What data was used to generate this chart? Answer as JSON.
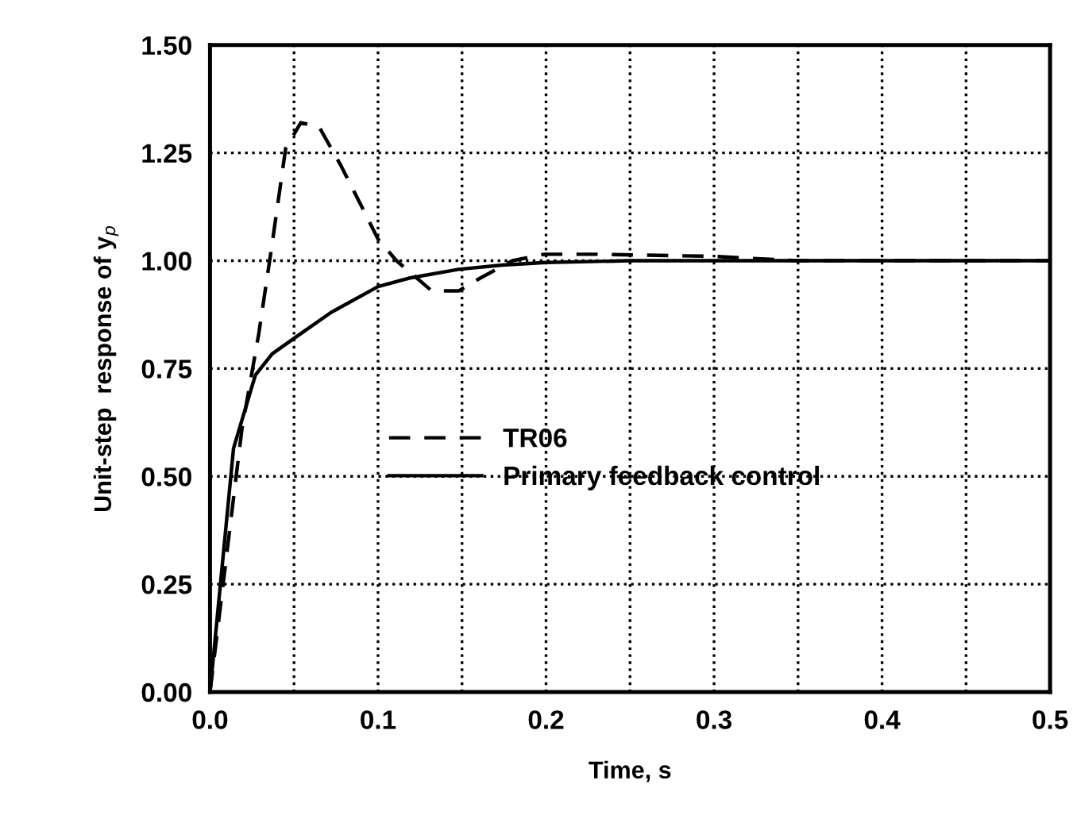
{
  "chart_data": {
    "type": "line",
    "xlabel": "Time, s",
    "ylabel": "Unit-step  response of y$_{p}$",
    "xlim": [
      0,
      0.5
    ],
    "ylim": [
      0,
      1.5
    ],
    "xticks": [
      {
        "value": 0,
        "label": "0.0"
      },
      {
        "value": 0.05,
        "label": null
      },
      {
        "value": 0.1,
        "label": "0.1"
      },
      {
        "value": 0.15,
        "label": null
      },
      {
        "value": 0.2,
        "label": "0.2"
      },
      {
        "value": 0.25,
        "label": null
      },
      {
        "value": 0.3,
        "label": "0.3"
      },
      {
        "value": 0.35,
        "label": null
      },
      {
        "value": 0.4,
        "label": "0.4"
      },
      {
        "value": 0.45,
        "label": null
      },
      {
        "value": 0.5,
        "label": "0.5"
      }
    ],
    "yticks": [
      {
        "value": 0,
        "label": "0.00"
      },
      {
        "value": 0.25,
        "label": "0.25"
      },
      {
        "value": 0.5,
        "label": "0.50"
      },
      {
        "value": 0.75,
        "label": "0.75"
      },
      {
        "value": 1.0,
        "label": "1.00"
      },
      {
        "value": 1.25,
        "label": "1.25"
      },
      {
        "value": 1.5,
        "label": "1.50"
      }
    ],
    "grid": true,
    "legend": "center",
    "series": [
      {
        "name": "TR06",
        "color": "#000000",
        "line_style": "dashed",
        "x": [
          0,
          0.019,
          0.029,
          0.037,
          0.045,
          0.054,
          0.065,
          0.078,
          0.091,
          0.1,
          0.111,
          0.132,
          0.148,
          0.161,
          0.18,
          0.199,
          0.23,
          0.3,
          0.35,
          0.5
        ],
        "values": [
          0,
          0.61,
          0.83,
          1.04,
          1.26,
          1.32,
          1.31,
          1.22,
          1.12,
          1.05,
          1.0,
          0.93,
          0.93,
          0.96,
          1.0,
          1.015,
          1.015,
          1.01,
          1.0,
          1.0
        ]
      },
      {
        "name": "Primary feedback control",
        "color": "#000000",
        "line_style": "solid",
        "x": [
          0,
          0.014,
          0.027,
          0.037,
          0.05,
          0.072,
          0.1,
          0.119,
          0.148,
          0.174,
          0.2,
          0.25,
          0.5
        ],
        "values": [
          0,
          0.565,
          0.735,
          0.784,
          0.82,
          0.88,
          0.94,
          0.96,
          0.98,
          0.99,
          0.996,
          1.0,
          1.0
        ]
      }
    ]
  }
}
